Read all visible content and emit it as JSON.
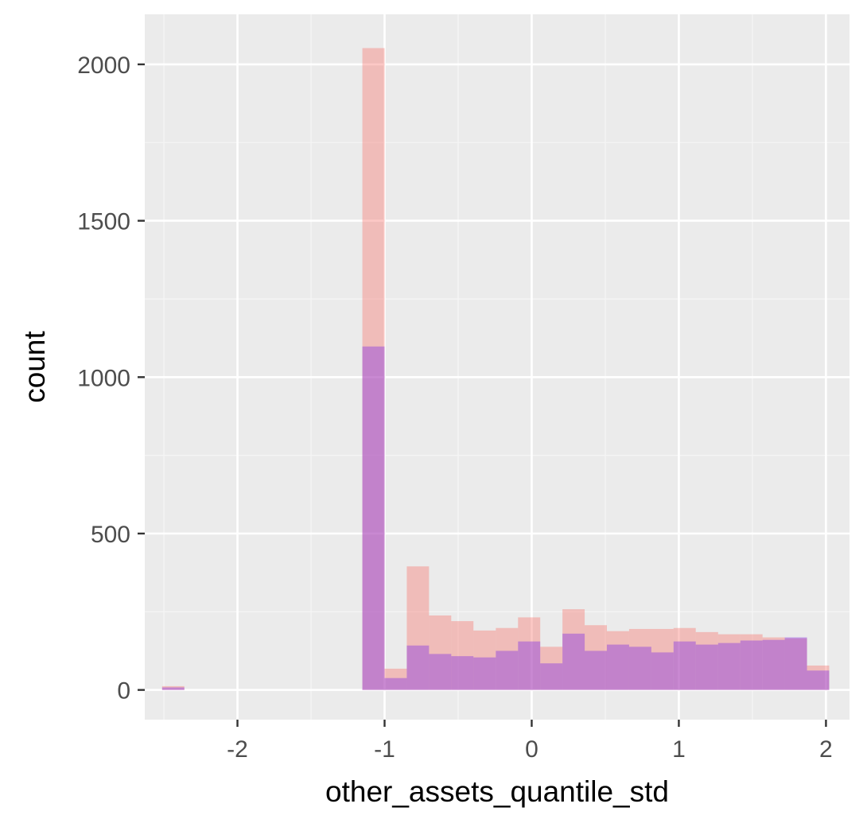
{
  "chart_data": {
    "type": "histogram",
    "title": "",
    "xlabel": "other_assets_quantile_std",
    "ylabel": "count",
    "xlim": [
      -2.63,
      2.16
    ],
    "ylim": [
      -95,
      2160
    ],
    "x_ticks": [
      -2,
      -1,
      0,
      1,
      2
    ],
    "x_tick_labels": [
      "-2",
      "-1",
      "0",
      "1",
      "2"
    ],
    "y_ticks": [
      0,
      500,
      1000,
      1500,
      2000
    ],
    "y_tick_labels": [
      "0",
      "500",
      "1000",
      "1500",
      "2000"
    ],
    "grid": true,
    "legend": "none",
    "binwidth": 0.1511,
    "series": [
      {
        "color": "#F8766D",
        "opacity": 0.4,
        "bins": [
          {
            "x0": -2.512,
            "x1": -2.361,
            "count": 12
          },
          {
            "x0": -1.151,
            "x1": -1.0,
            "count": 2052
          },
          {
            "x0": -1.0,
            "x1": -0.849,
            "count": 68
          },
          {
            "x0": -0.849,
            "x1": -0.698,
            "count": 395
          },
          {
            "x0": -0.698,
            "x1": -0.547,
            "count": 238
          },
          {
            "x0": -0.547,
            "x1": -0.396,
            "count": 220
          },
          {
            "x0": -0.396,
            "x1": -0.244,
            "count": 190
          },
          {
            "x0": -0.244,
            "x1": -0.093,
            "count": 198
          },
          {
            "x0": -0.093,
            "x1": 0.058,
            "count": 232
          },
          {
            "x0": 0.058,
            "x1": 0.209,
            "count": 138
          },
          {
            "x0": 0.209,
            "x1": 0.36,
            "count": 258
          },
          {
            "x0": 0.36,
            "x1": 0.511,
            "count": 207
          },
          {
            "x0": 0.511,
            "x1": 0.662,
            "count": 188
          },
          {
            "x0": 0.662,
            "x1": 0.813,
            "count": 195
          },
          {
            "x0": 0.813,
            "x1": 0.964,
            "count": 195
          },
          {
            "x0": 0.964,
            "x1": 1.115,
            "count": 198
          },
          {
            "x0": 1.115,
            "x1": 1.267,
            "count": 185
          },
          {
            "x0": 1.267,
            "x1": 1.418,
            "count": 178
          },
          {
            "x0": 1.418,
            "x1": 1.569,
            "count": 178
          },
          {
            "x0": 1.569,
            "x1": 1.72,
            "count": 168
          },
          {
            "x0": 1.72,
            "x1": 1.871,
            "count": 165
          },
          {
            "x0": 1.871,
            "x1": 2.022,
            "count": 78
          }
        ]
      },
      {
        "color": "#7E2AE6",
        "opacity": 0.4,
        "bins": [
          {
            "x0": -2.512,
            "x1": -2.361,
            "count": 8
          },
          {
            "x0": -1.151,
            "x1": -1.0,
            "count": 1098
          },
          {
            "x0": -1.0,
            "x1": -0.849,
            "count": 38
          },
          {
            "x0": -0.849,
            "x1": -0.698,
            "count": 142
          },
          {
            "x0": -0.698,
            "x1": -0.547,
            "count": 115
          },
          {
            "x0": -0.547,
            "x1": -0.396,
            "count": 108
          },
          {
            "x0": -0.396,
            "x1": -0.244,
            "count": 104
          },
          {
            "x0": -0.244,
            "x1": -0.093,
            "count": 125
          },
          {
            "x0": -0.093,
            "x1": 0.058,
            "count": 155
          },
          {
            "x0": 0.058,
            "x1": 0.209,
            "count": 85
          },
          {
            "x0": 0.209,
            "x1": 0.36,
            "count": 180
          },
          {
            "x0": 0.36,
            "x1": 0.511,
            "count": 125
          },
          {
            "x0": 0.511,
            "x1": 0.662,
            "count": 145
          },
          {
            "x0": 0.662,
            "x1": 0.813,
            "count": 138
          },
          {
            "x0": 0.813,
            "x1": 0.964,
            "count": 120
          },
          {
            "x0": 0.964,
            "x1": 1.115,
            "count": 155
          },
          {
            "x0": 1.115,
            "x1": 1.267,
            "count": 145
          },
          {
            "x0": 1.267,
            "x1": 1.418,
            "count": 150
          },
          {
            "x0": 1.418,
            "x1": 1.569,
            "count": 158
          },
          {
            "x0": 1.569,
            "x1": 1.72,
            "count": 160
          },
          {
            "x0": 1.72,
            "x1": 1.871,
            "count": 168
          },
          {
            "x0": 1.871,
            "x1": 2.022,
            "count": 62
          }
        ]
      }
    ],
    "colors": {
      "panel_background": "#EBEBEB",
      "grid_major": "#FFFFFF",
      "grid_minor": "#F5F5F5",
      "tick": "#333333",
      "tick_label": "#4D4D4D",
      "axis_title": "#000000"
    }
  }
}
